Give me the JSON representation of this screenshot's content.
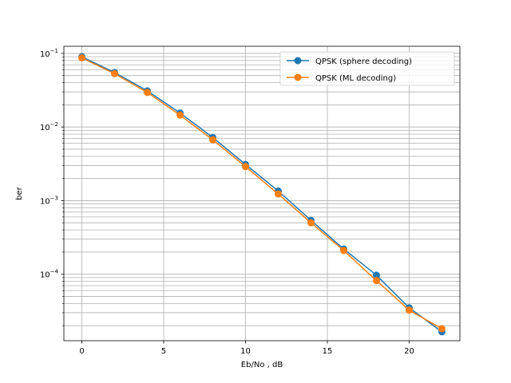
{
  "chart_data": {
    "type": "line",
    "xlabel": "Eb/No , dB",
    "ylabel": "ber",
    "xscale": "linear",
    "yscale": "log",
    "xlim": [
      -1.1,
      23.1
    ],
    "ylim": [
      1.25e-05,
      0.125
    ],
    "xticks": [
      0,
      5,
      10,
      15,
      20
    ],
    "xtick_labels": [
      "0",
      "5",
      "10",
      "15",
      "20"
    ],
    "yticks": [
      0.1,
      0.01,
      0.001,
      0.0001
    ],
    "ytick_labels": [
      {
        "base": "10",
        "exp": "−1"
      },
      {
        "base": "10",
        "exp": "−2"
      },
      {
        "base": "10",
        "exp": "−3"
      },
      {
        "base": "10",
        "exp": "−4"
      }
    ],
    "grid": "major and minor",
    "legend_position": "top-right",
    "x": [
      0,
      2,
      4,
      6,
      8,
      10,
      12,
      14,
      16,
      18,
      20,
      22
    ],
    "series": [
      {
        "name": "QPSK (sphere decoding)",
        "color": "#1f77b4",
        "marker": "circle",
        "values": [
          0.09,
          0.055,
          0.031,
          0.0155,
          0.0072,
          0.0031,
          0.00135,
          0.00054,
          0.00022,
          9.7e-05,
          3.5e-05,
          1.65e-05
        ]
      },
      {
        "name": "QPSK (ML decoding)",
        "color": "#ff7f0e",
        "marker": "circle",
        "values": [
          0.087,
          0.053,
          0.0295,
          0.0145,
          0.0067,
          0.0029,
          0.00123,
          0.0005,
          0.00021,
          8.2e-05,
          3.25e-05,
          1.82e-05
        ]
      }
    ]
  }
}
